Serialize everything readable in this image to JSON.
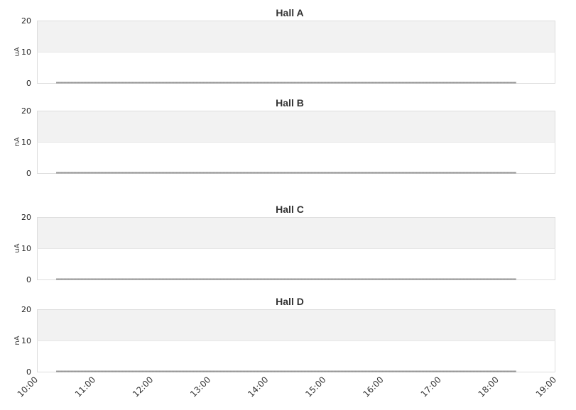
{
  "chart_data": [
    {
      "type": "line",
      "title": "Hall A",
      "ylabel": "uA",
      "ylim": [
        0,
        20
      ],
      "yticks": [
        "0",
        "10",
        "20"
      ],
      "series": [
        {
          "start": "10:10",
          "end": "18:10",
          "value": 0
        }
      ],
      "xlim": [
        "10:00",
        "19:00"
      ],
      "grid": true
    },
    {
      "type": "line",
      "title": "Hall B",
      "ylabel": "nA",
      "ylim": [
        0,
        20
      ],
      "yticks": [
        "0",
        "10",
        "20"
      ],
      "series": [
        {
          "start": "10:10",
          "end": "18:10",
          "value": 0
        }
      ],
      "xlim": [
        "10:00",
        "19:00"
      ],
      "grid": true
    },
    {
      "type": "line",
      "title": "Hall C",
      "ylabel": "uA",
      "ylim": [
        0,
        20
      ],
      "yticks": [
        "0",
        "10",
        "20"
      ],
      "series": [
        {
          "start": "10:10",
          "end": "18:10",
          "value": 0
        }
      ],
      "xlim": [
        "10:00",
        "19:00"
      ],
      "grid": true
    },
    {
      "type": "line",
      "title": "Hall D",
      "ylabel": "nA",
      "ylim": [
        0,
        20
      ],
      "yticks": [
        "0",
        "10",
        "20"
      ],
      "series": [
        {
          "start": "10:10",
          "end": "18:10",
          "value": 0
        }
      ],
      "xlim": [
        "10:00",
        "19:00"
      ],
      "grid": true,
      "xticks": [
        "10:00",
        "11:00",
        "12:00",
        "13:00",
        "14:00",
        "15:00",
        "16:00",
        "17:00",
        "18:00",
        "19:00"
      ]
    }
  ],
  "colors": {
    "band": "#f2f2f2",
    "line": "#333333",
    "border": "#dddddd"
  }
}
